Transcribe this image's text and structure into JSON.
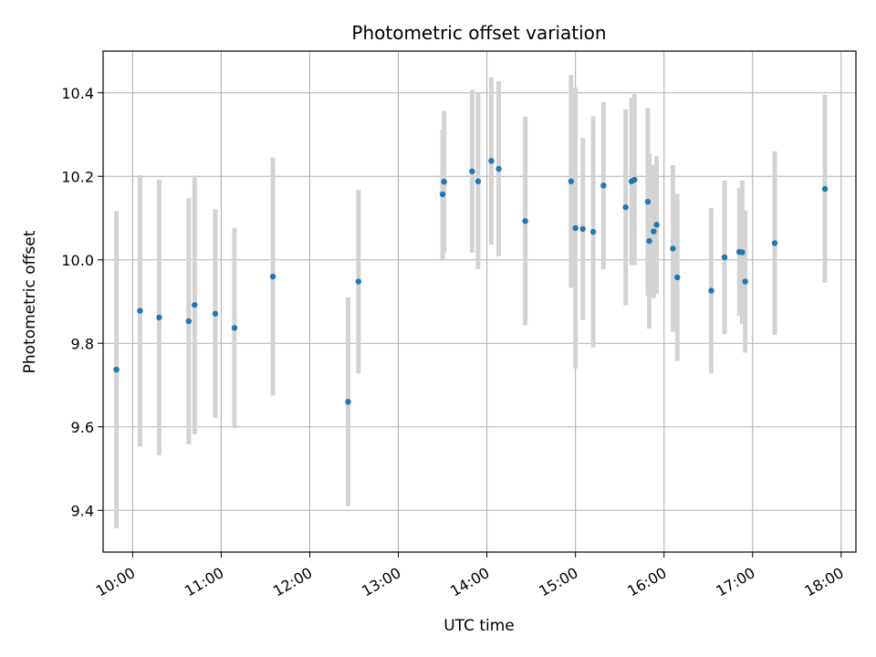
{
  "chart_data": {
    "type": "scatter",
    "title": "Photometric offset variation",
    "xlabel": "UTC time",
    "ylabel": "Photometric offset",
    "xlim": [
      "09:40",
      "18:10"
    ],
    "ylim": [
      9.3,
      10.5
    ],
    "x_ticks": [
      "10:00",
      "11:00",
      "12:00",
      "13:00",
      "14:00",
      "15:00",
      "16:00",
      "17:00",
      "18:00"
    ],
    "y_ticks": [
      "9.4",
      "9.6",
      "9.8",
      "10.0",
      "10.2",
      "10.4"
    ],
    "grid": true,
    "colors": {
      "point": "#1f77b4",
      "errorbar": "#d3d3d3",
      "grid": "#b0b0b0"
    },
    "series": [
      {
        "points": [
          {
            "t": "09:49",
            "y": 9.737,
            "err": 0.38
          },
          {
            "t": "10:05",
            "y": 9.878,
            "err": 0.325
          },
          {
            "t": "10:18",
            "y": 9.862,
            "err": 0.33
          },
          {
            "t": "10:38",
            "y": 9.853,
            "err": 0.295
          },
          {
            "t": "10:42",
            "y": 9.892,
            "err": 0.31
          },
          {
            "t": "10:56",
            "y": 9.871,
            "err": 0.25
          },
          {
            "t": "11:09",
            "y": 9.837,
            "err": 0.24
          },
          {
            "t": "11:35",
            "y": 9.96,
            "err": 0.285
          },
          {
            "t": "12:26",
            "y": 9.66,
            "err": 0.25
          },
          {
            "t": "12:33",
            "y": 9.948,
            "err": 0.22
          },
          {
            "t": "13:30",
            "y": 10.157,
            "err": 0.155
          },
          {
            "t": "13:31",
            "y": 10.187,
            "err": 0.17
          },
          {
            "t": "13:50",
            "y": 10.212,
            "err": 0.195
          },
          {
            "t": "13:54",
            "y": 10.188,
            "err": 0.21
          },
          {
            "t": "14:03",
            "y": 10.237,
            "err": 0.2
          },
          {
            "t": "14:08",
            "y": 10.218,
            "err": 0.21
          },
          {
            "t": "14:26",
            "y": 10.093,
            "err": 0.25
          },
          {
            "t": "14:57",
            "y": 10.188,
            "err": 0.255
          },
          {
            "t": "15:00",
            "y": 10.076,
            "err": 0.337
          },
          {
            "t": "15:05",
            "y": 10.074,
            "err": 0.218
          },
          {
            "t": "15:12",
            "y": 10.067,
            "err": 0.277
          },
          {
            "t": "15:19",
            "y": 10.178,
            "err": 0.2
          },
          {
            "t": "15:34",
            "y": 10.126,
            "err": 0.235
          },
          {
            "t": "15:38",
            "y": 10.188,
            "err": 0.2
          },
          {
            "t": "15:40",
            "y": 10.192,
            "err": 0.205
          },
          {
            "t": "15:49",
            "y": 10.139,
            "err": 0.225
          },
          {
            "t": "15:50",
            "y": 10.045,
            "err": 0.21
          },
          {
            "t": "15:53",
            "y": 10.068,
            "err": 0.16
          },
          {
            "t": "15:55",
            "y": 10.084,
            "err": 0.165
          },
          {
            "t": "16:06",
            "y": 10.027,
            "err": 0.2
          },
          {
            "t": "16:09",
            "y": 9.958,
            "err": 0.2
          },
          {
            "t": "16:32",
            "y": 9.926,
            "err": 0.198
          },
          {
            "t": "16:41",
            "y": 10.006,
            "err": 0.184
          },
          {
            "t": "16:51",
            "y": 10.019,
            "err": 0.153
          },
          {
            "t": "16:53",
            "y": 10.018,
            "err": 0.172
          },
          {
            "t": "16:55",
            "y": 9.948,
            "err": 0.17
          },
          {
            "t": "17:15",
            "y": 10.04,
            "err": 0.22
          },
          {
            "t": "17:49",
            "y": 10.17,
            "err": 0.225
          }
        ]
      }
    ]
  }
}
